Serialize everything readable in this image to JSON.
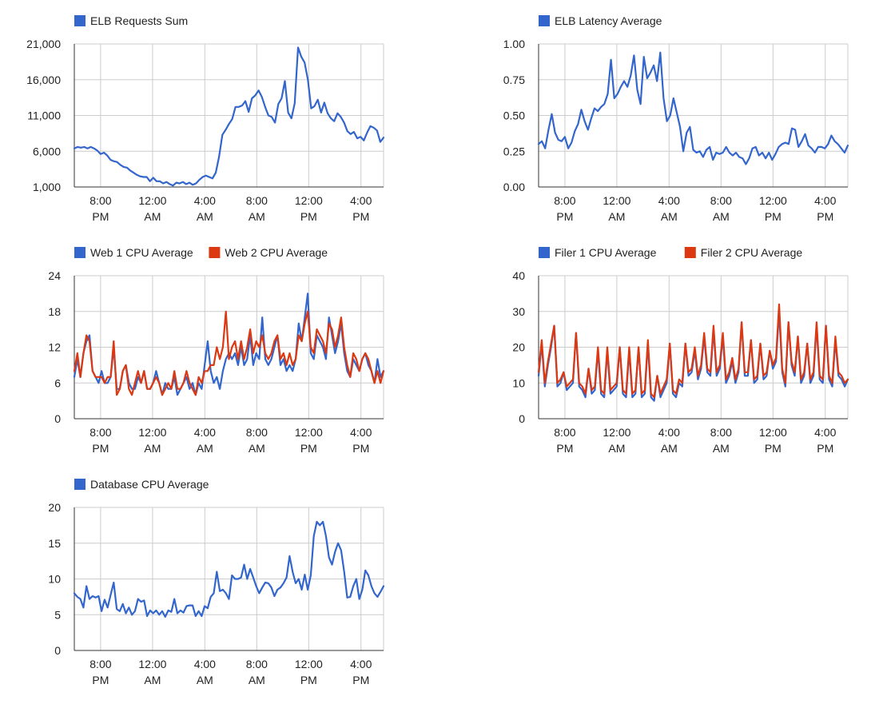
{
  "dashboard": {
    "colors": {
      "blue": "#3366cc",
      "red": "#dc3912",
      "grid": "#cccccc",
      "axis": "#333333",
      "text": "#222222"
    },
    "x_ticks": [
      "8:00 PM",
      "12:00 AM",
      "4:00 AM",
      "8:00 AM",
      "12:00 PM",
      "4:00 PM"
    ]
  },
  "chart_data": [
    {
      "type": "line",
      "grid": true,
      "legend": "top-left",
      "x_axis": "time",
      "yticks": [
        "21,000",
        "16,000",
        "11,000",
        "6,000",
        "1,000"
      ],
      "ylim": [
        1000,
        21000
      ],
      "series": [
        {
          "name": "ELB Requests Sum",
          "color": "#3366cc",
          "values": [
            6400,
            6600,
            6500,
            6600,
            6400,
            6600,
            6400,
            6100,
            5600,
            5800,
            5400,
            4800,
            4600,
            4500,
            4100,
            3800,
            3700,
            3300,
            3000,
            2700,
            2500,
            2400,
            2400,
            1800,
            2300,
            1800,
            1800,
            1500,
            1700,
            1400,
            1200,
            1600,
            1500,
            1700,
            1400,
            1600,
            1300,
            1500,
            2000,
            2400,
            2600,
            2400,
            2200,
            3000,
            5200,
            8300,
            9000,
            9800,
            10500,
            12200,
            12200,
            12400,
            13000,
            11500,
            13400,
            13800,
            14500,
            13600,
            12200,
            11000,
            10800,
            10000,
            12600,
            13400,
            15800,
            11400,
            10600,
            12700,
            20500,
            19200,
            18400,
            16000,
            12000,
            12300,
            13200,
            11400,
            12800,
            11300,
            10600,
            10200,
            11300,
            10800,
            10000,
            8800,
            8400,
            8700,
            7800,
            8000,
            7500,
            8600,
            9500,
            9300,
            8900,
            7300,
            7900
          ]
        }
      ]
    },
    {
      "type": "line",
      "grid": true,
      "legend": "top-left",
      "x_axis": "time",
      "yticks": [
        "1.00",
        "0.75",
        "0.50",
        "0.25",
        "0.00"
      ],
      "ylim": [
        0,
        1
      ],
      "series": [
        {
          "name": "ELB Latency Average",
          "color": "#3366cc",
          "values": [
            0.3,
            0.32,
            0.27,
            0.4,
            0.51,
            0.38,
            0.33,
            0.32,
            0.35,
            0.27,
            0.31,
            0.39,
            0.44,
            0.54,
            0.46,
            0.4,
            0.48,
            0.55,
            0.53,
            0.56,
            0.58,
            0.65,
            0.89,
            0.62,
            0.65,
            0.7,
            0.74,
            0.7,
            0.78,
            0.92,
            0.68,
            0.58,
            0.91,
            0.76,
            0.8,
            0.85,
            0.74,
            0.94,
            0.62,
            0.46,
            0.5,
            0.62,
            0.52,
            0.42,
            0.25,
            0.38,
            0.42,
            0.26,
            0.24,
            0.25,
            0.21,
            0.26,
            0.28,
            0.19,
            0.24,
            0.23,
            0.24,
            0.28,
            0.24,
            0.22,
            0.24,
            0.21,
            0.2,
            0.16,
            0.2,
            0.27,
            0.28,
            0.22,
            0.24,
            0.2,
            0.24,
            0.19,
            0.23,
            0.28,
            0.3,
            0.31,
            0.3,
            0.41,
            0.4,
            0.28,
            0.32,
            0.37,
            0.29,
            0.27,
            0.24,
            0.28,
            0.28,
            0.27,
            0.3,
            0.36,
            0.32,
            0.3,
            0.27,
            0.24,
            0.29
          ]
        }
      ]
    },
    {
      "type": "line",
      "grid": true,
      "legend": "top",
      "x_axis": "time",
      "yticks": [
        "24",
        "18",
        "12",
        "6",
        "0"
      ],
      "ylim": [
        0,
        24
      ],
      "series": [
        {
          "name": "Web 1 CPU Average",
          "color": "#3366cc",
          "values": [
            7,
            10,
            7,
            11,
            13,
            14,
            8,
            7,
            6,
            8,
            6,
            6,
            7,
            12,
            5,
            5,
            8,
            9,
            6,
            5,
            5,
            7,
            6,
            8,
            5,
            5,
            6,
            8,
            6,
            4,
            6,
            5,
            5,
            7,
            4,
            5,
            6,
            7,
            5,
            6,
            4,
            6,
            5,
            9,
            13,
            8,
            6,
            7,
            5,
            8,
            10,
            11,
            10,
            11,
            9,
            12,
            9,
            10,
            14,
            9,
            11,
            10,
            17,
            10,
            9,
            10,
            12,
            14,
            9,
            10,
            8,
            9,
            8,
            10,
            16,
            13,
            17,
            21,
            11,
            10,
            14,
            13,
            12,
            10,
            17,
            14,
            11,
            13,
            16,
            11,
            8,
            7,
            10,
            9,
            8,
            10,
            11,
            9,
            8,
            6,
            10,
            7,
            8
          ],
          "values_note": ""
        },
        {
          "name": "Web 2 CPU Average",
          "color": "#dc3912",
          "values": [
            8,
            11,
            7,
            11,
            14,
            13,
            8,
            7,
            7,
            7,
            6,
            7,
            7,
            13,
            4,
            5,
            8,
            9,
            5,
            4,
            6,
            8,
            6,
            8,
            5,
            5,
            6,
            7,
            6,
            4,
            5,
            6,
            5,
            8,
            5,
            5,
            6,
            8,
            6,
            5,
            4,
            7,
            6,
            8,
            8,
            9,
            9,
            12,
            10,
            12,
            18,
            10,
            12,
            13,
            10,
            13,
            10,
            12,
            15,
            11,
            13,
            12,
            14,
            11,
            10,
            11,
            13,
            14,
            10,
            11,
            9,
            11,
            9,
            10,
            14,
            13,
            16,
            18,
            12,
            11,
            15,
            14,
            13,
            11,
            16,
            15,
            12,
            14,
            17,
            12,
            9,
            7,
            11,
            10,
            8,
            10,
            11,
            10,
            8,
            6,
            8,
            6,
            8
          ]
        }
      ]
    },
    {
      "type": "line",
      "grid": true,
      "legend": "top",
      "x_axis": "time",
      "yticks": [
        "40",
        "30",
        "20",
        "10",
        "0"
      ],
      "ylim": [
        0,
        40
      ],
      "series": [
        {
          "name": "Filer 1 CPU Average",
          "color": "#3366cc",
          "values": [
            12,
            21,
            9,
            15,
            20,
            26,
            9,
            10,
            13,
            8,
            9,
            10,
            24,
            9,
            8,
            6,
            14,
            7,
            8,
            19,
            7,
            6,
            19,
            7,
            8,
            9,
            20,
            7,
            6,
            19,
            6,
            7,
            20,
            6,
            7,
            21,
            6,
            5,
            12,
            6,
            8,
            10,
            21,
            7,
            6,
            10,
            9,
            21,
            12,
            13,
            19,
            11,
            14,
            23,
            13,
            12,
            25,
            12,
            14,
            23,
            10,
            12,
            16,
            10,
            13,
            27,
            12,
            12,
            22,
            10,
            11,
            21,
            11,
            12,
            19,
            14,
            16,
            30,
            13,
            9,
            27,
            15,
            12,
            23,
            10,
            12,
            21,
            10,
            12,
            26,
            11,
            10,
            26,
            11,
            9,
            22,
            12,
            11,
            9,
            11
          ]
        },
        {
          "name": "Filer 2 CPU Average",
          "color": "#dc3912",
          "values": [
            13,
            22,
            10,
            16,
            21,
            26,
            10,
            11,
            13,
            9,
            10,
            11,
            24,
            10,
            9,
            7,
            14,
            8,
            9,
            20,
            8,
            7,
            20,
            8,
            9,
            10,
            20,
            8,
            7,
            20,
            7,
            8,
            20,
            7,
            8,
            22,
            7,
            6,
            12,
            7,
            9,
            11,
            21,
            8,
            7,
            11,
            10,
            21,
            13,
            14,
            20,
            12,
            15,
            24,
            14,
            13,
            26,
            13,
            15,
            24,
            11,
            13,
            17,
            11,
            14,
            27,
            13,
            13,
            22,
            11,
            12,
            21,
            12,
            13,
            19,
            15,
            17,
            32,
            14,
            10,
            27,
            16,
            13,
            23,
            11,
            13,
            21,
            11,
            13,
            27,
            12,
            11,
            26,
            12,
            10,
            23,
            13,
            12,
            10,
            11
          ]
        }
      ]
    },
    {
      "type": "line",
      "grid": true,
      "legend": "top-left",
      "x_axis": "time",
      "yticks": [
        "20",
        "15",
        "10",
        "5",
        "0"
      ],
      "ylim": [
        0,
        20
      ],
      "series": [
        {
          "name": "Database CPU Average",
          "color": "#3366cc",
          "values": [
            8,
            7.5,
            7.2,
            6,
            9,
            7.2,
            7.6,
            7.4,
            7.6,
            5.5,
            7.1,
            6,
            7.8,
            9.5,
            5.8,
            5.5,
            6.5,
            5.2,
            6,
            5,
            5.5,
            7.2,
            6.8,
            7,
            4.8,
            5.6,
            5.2,
            5.6,
            5,
            5.5,
            4.7,
            5.6,
            5.4,
            7.2,
            5.2,
            5.6,
            5.3,
            6.2,
            6.3,
            6.3,
            4.8,
            5.5,
            4.8,
            6.2,
            5.9,
            7.5,
            8,
            11,
            8.3,
            8.5,
            8,
            7.2,
            10.5,
            10,
            10,
            10.2,
            12,
            10,
            11.4,
            10.2,
            9,
            8,
            8.8,
            9.5,
            9.4,
            8.8,
            7.6,
            8.5,
            8.8,
            9.4,
            10.2,
            13.2,
            11,
            9.4,
            10,
            8.5,
            10.6,
            8.5,
            10.5,
            16,
            18,
            17.5,
            18,
            16,
            13,
            12,
            13.8,
            15,
            14,
            11,
            7.4,
            7.5,
            9,
            10,
            7.2,
            8.5,
            11.2,
            10.5,
            9,
            8,
            7.5,
            8.2,
            9
          ]
        }
      ]
    }
  ]
}
